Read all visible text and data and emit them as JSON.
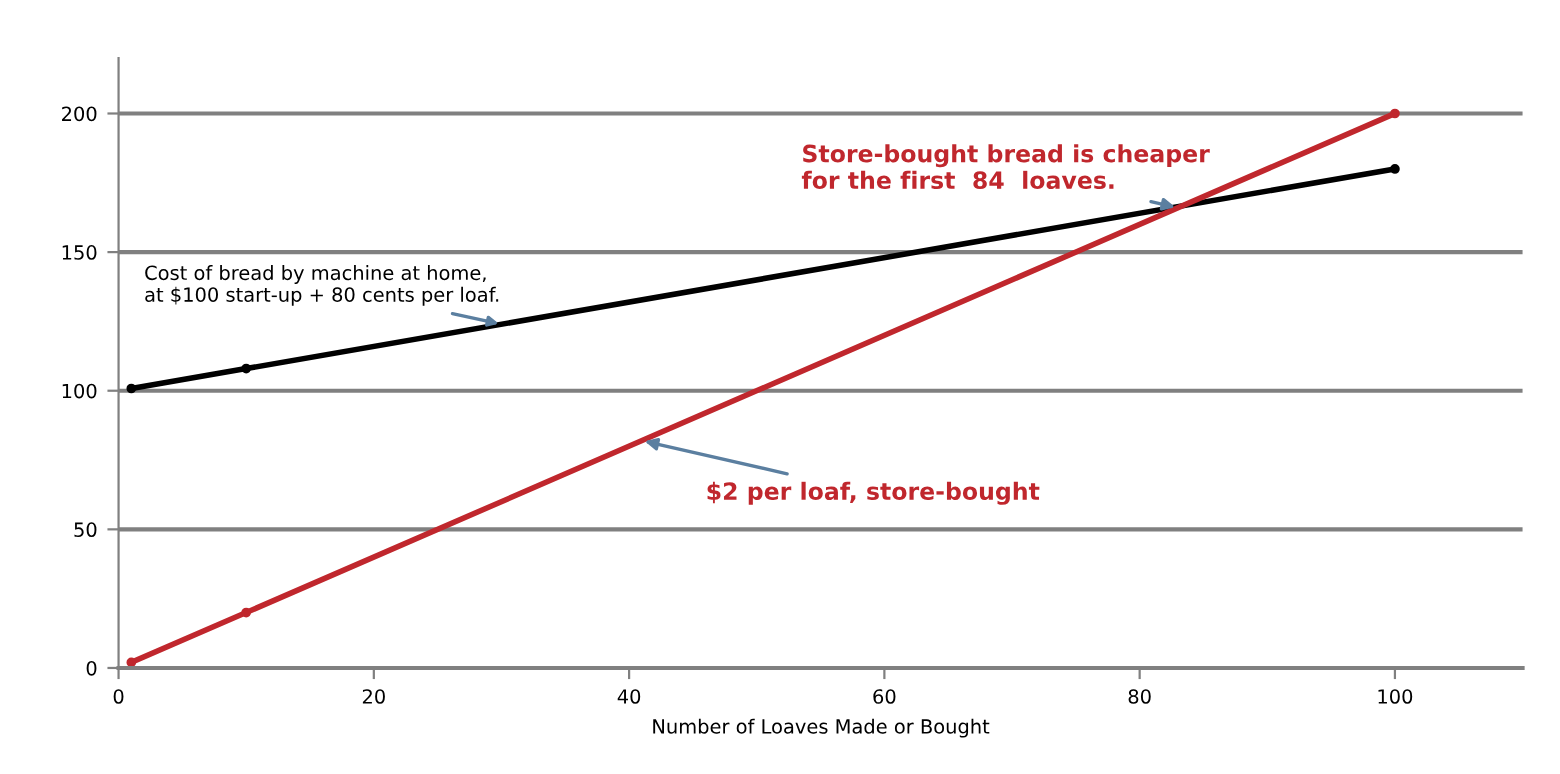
{
  "chart_data": {
    "type": "line",
    "xlabel": "Number of Loaves Made or Bought",
    "series": [
      {
        "color": "#000000",
        "x": [
          1,
          10,
          100
        ],
        "values": [
          100.8,
          108,
          180
        ]
      },
      {
        "color": "#c0272d",
        "x": [
          1,
          10,
          100
        ],
        "values": [
          2,
          20,
          200
        ]
      }
    ],
    "xlim": [
      0,
      110
    ],
    "xticks": [
      0,
      20,
      40,
      60,
      80,
      100
    ],
    "ylim": [
      0,
      220
    ],
    "yticks": [
      0,
      50,
      100,
      150,
      200
    ],
    "grid": "y",
    "legend": false,
    "marker": "circle",
    "line_style": "solid",
    "annotations": [
      {
        "text": "Cost of bread by machine at home,\nat $100 start-up + 80 cents per loaf.",
        "x": 30,
        "y": 124
      },
      {
        "text": "$2 per loaf, store-bought",
        "x": 41,
        "y": 82
      },
      {
        "text": "Store-bought bread is cheaper\nfor the first  84  loaves.",
        "x": 83,
        "y": 166
      }
    ]
  }
}
